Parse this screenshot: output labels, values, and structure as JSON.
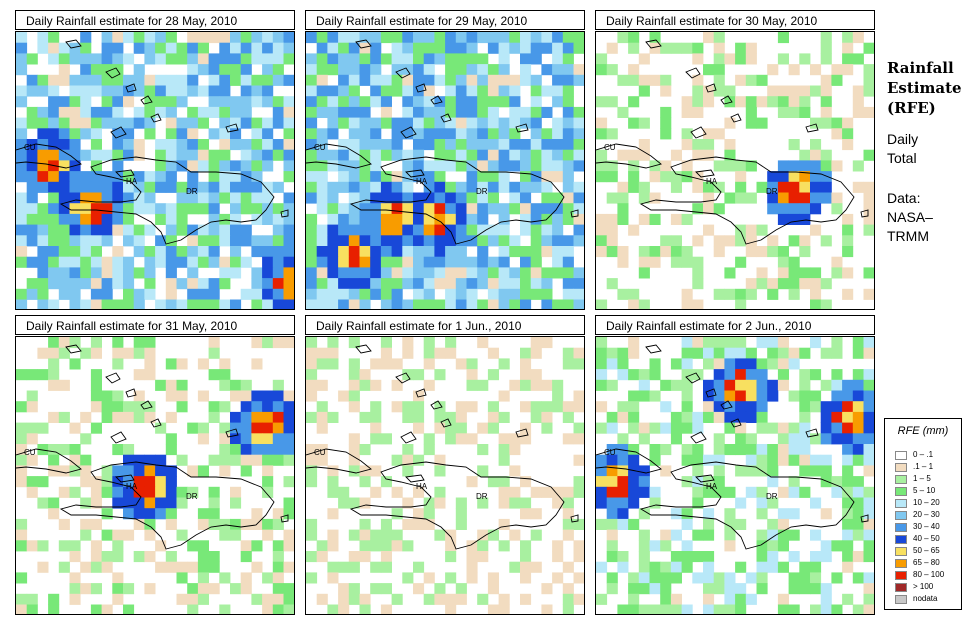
{
  "panels": [
    {
      "title": "Daily Rainfall estimate for  28 May, 2010"
    },
    {
      "title": "Daily Rainfall estimate for  29 May, 2010"
    },
    {
      "title": "Daily Rainfall estimate for  30 May, 2010"
    },
    {
      "title": "Daily Rainfall estimate for  31 May, 2010"
    },
    {
      "title": "Daily Rainfall estimate for  1 Jun., 2010"
    },
    {
      "title": "Daily Rainfall estimate for  2 Jun., 2010"
    }
  ],
  "map_labels": {
    "cuba": "CU",
    "haiti": "HA",
    "dominican_republic": "DR"
  },
  "side_panel": {
    "title_line1": "Rainfall",
    "title_line2": "Estimate",
    "title_line3": "(RFE)",
    "subtitle_line1": "Daily",
    "subtitle_line2": "Total",
    "source_line1": "Data:",
    "source_line2": "NASA–",
    "source_line3": "TRMM"
  },
  "legend": {
    "title": "RFE (mm)",
    "items": [
      {
        "label": "0 – .1",
        "color": "#ffffff"
      },
      {
        "label": ".1 – 1",
        "color": "#f2dcc0"
      },
      {
        "label": "1 – 5",
        "color": "#a8f0a0"
      },
      {
        "label": "5 – 10",
        "color": "#78e878"
      },
      {
        "label": "10 – 20",
        "color": "#b8e8f8"
      },
      {
        "label": "20 – 30",
        "color": "#80c8f0"
      },
      {
        "label": "30 – 40",
        "color": "#4898e8"
      },
      {
        "label": "40 – 50",
        "color": "#1848d8"
      },
      {
        "label": "50 – 65",
        "color": "#f8e060"
      },
      {
        "label": "65 – 80",
        "color": "#f89c00"
      },
      {
        "label": "80 – 100",
        "color": "#e82000"
      },
      {
        "label": "> 100",
        "color": "#a02828"
      },
      {
        "label": "nodata",
        "color": "#c8c8c8"
      }
    ]
  }
}
